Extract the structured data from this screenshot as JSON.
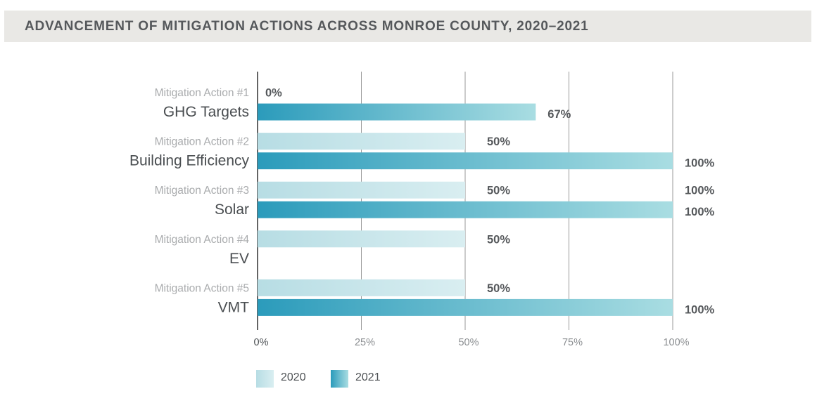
{
  "title": "ADVANCEMENT OF MITIGATION ACTIONS ACROSS MONROE COUNTY, 2020–2021",
  "chart_data": {
    "type": "bar",
    "orientation": "horizontal",
    "title": "ADVANCEMENT OF MITIGATION ACTIONS ACROSS MONROE COUNTY, 2020–2021",
    "categories": [
      {
        "action": "Mitigation Action #1",
        "name": "GHG Targets"
      },
      {
        "action": "Mitigation Action #2",
        "name": "Building Efficiency"
      },
      {
        "action": "Mitigation Action #3",
        "name": "Solar"
      },
      {
        "action": "Mitigation Action #4",
        "name": "EV"
      },
      {
        "action": "Mitigation Action #5",
        "name": "VMT"
      }
    ],
    "series": [
      {
        "name": "2020",
        "values": [
          0,
          50,
          50,
          50,
          50
        ],
        "labels": [
          "0%",
          "50%",
          "50%",
          "50%",
          "50%"
        ]
      },
      {
        "name": "2021",
        "values": [
          67,
          100,
          100,
          null,
          100
        ],
        "labels": [
          "67%",
          "100%",
          "100%",
          "",
          "100%"
        ]
      }
    ],
    "extra_annotations": [
      {
        "category_index": 2,
        "series": "2020",
        "text": "100%"
      }
    ],
    "xlim": [
      0,
      100
    ],
    "xticks": [
      "0%",
      "25%",
      "50%",
      "75%",
      "100%"
    ],
    "grid": true,
    "legend": "bottom-left",
    "colors": {
      "2020_start": "#b7dde4",
      "2020_end": "#d9eef1",
      "2021_start": "#2b9bbb",
      "2021_end": "#a9dde2",
      "axis": "#222222",
      "grid": "#8e8e8e"
    }
  },
  "legend": [
    {
      "label": "2020"
    },
    {
      "label": "2021"
    }
  ]
}
